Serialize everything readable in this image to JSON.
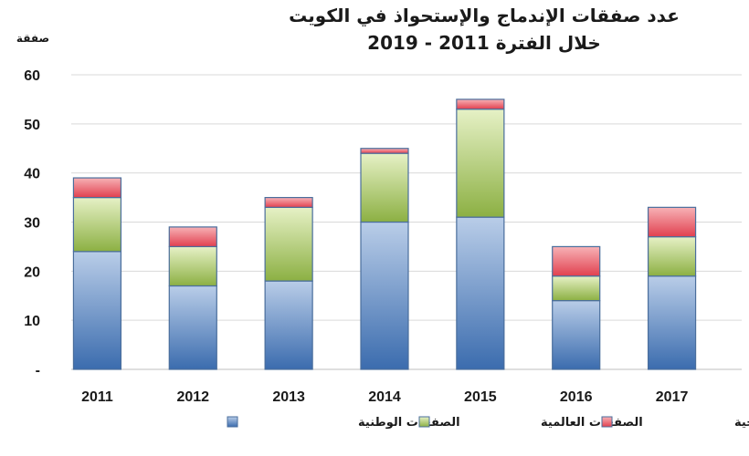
{
  "chart_data": {
    "type": "bar",
    "stacked": true,
    "title": "عدد صفقات الإندماج والإستحواذ في الكويت",
    "subtitle": "خلال الفترة 2011 - 2019",
    "ylabel": "صفقة",
    "ylim": [
      0,
      60
    ],
    "yticks": [
      "-",
      "10",
      "20",
      "30",
      "40",
      "50",
      "60"
    ],
    "yticks_values": [
      0,
      10,
      20,
      30,
      40,
      50,
      60
    ],
    "grid": true,
    "legend_position": "bottom",
    "categories": [
      "2011",
      "2012",
      "2013",
      "2014",
      "2015",
      "2016",
      "2017"
    ],
    "series": [
      {
        "name": "الصفقات الوطنية",
        "color": "#4f81bd",
        "values": [
          24,
          17,
          18,
          30,
          31,
          14,
          19
        ]
      },
      {
        "name": "الصفقات العالمية",
        "color": "#9bbb59",
        "values": [
          11,
          8,
          15,
          14,
          22,
          5,
          8
        ]
      },
      {
        "name": "الصفقات الخليجية",
        "color": "#e8515f",
        "values": [
          4,
          4,
          2,
          1,
          2,
          6,
          6
        ]
      }
    ]
  }
}
